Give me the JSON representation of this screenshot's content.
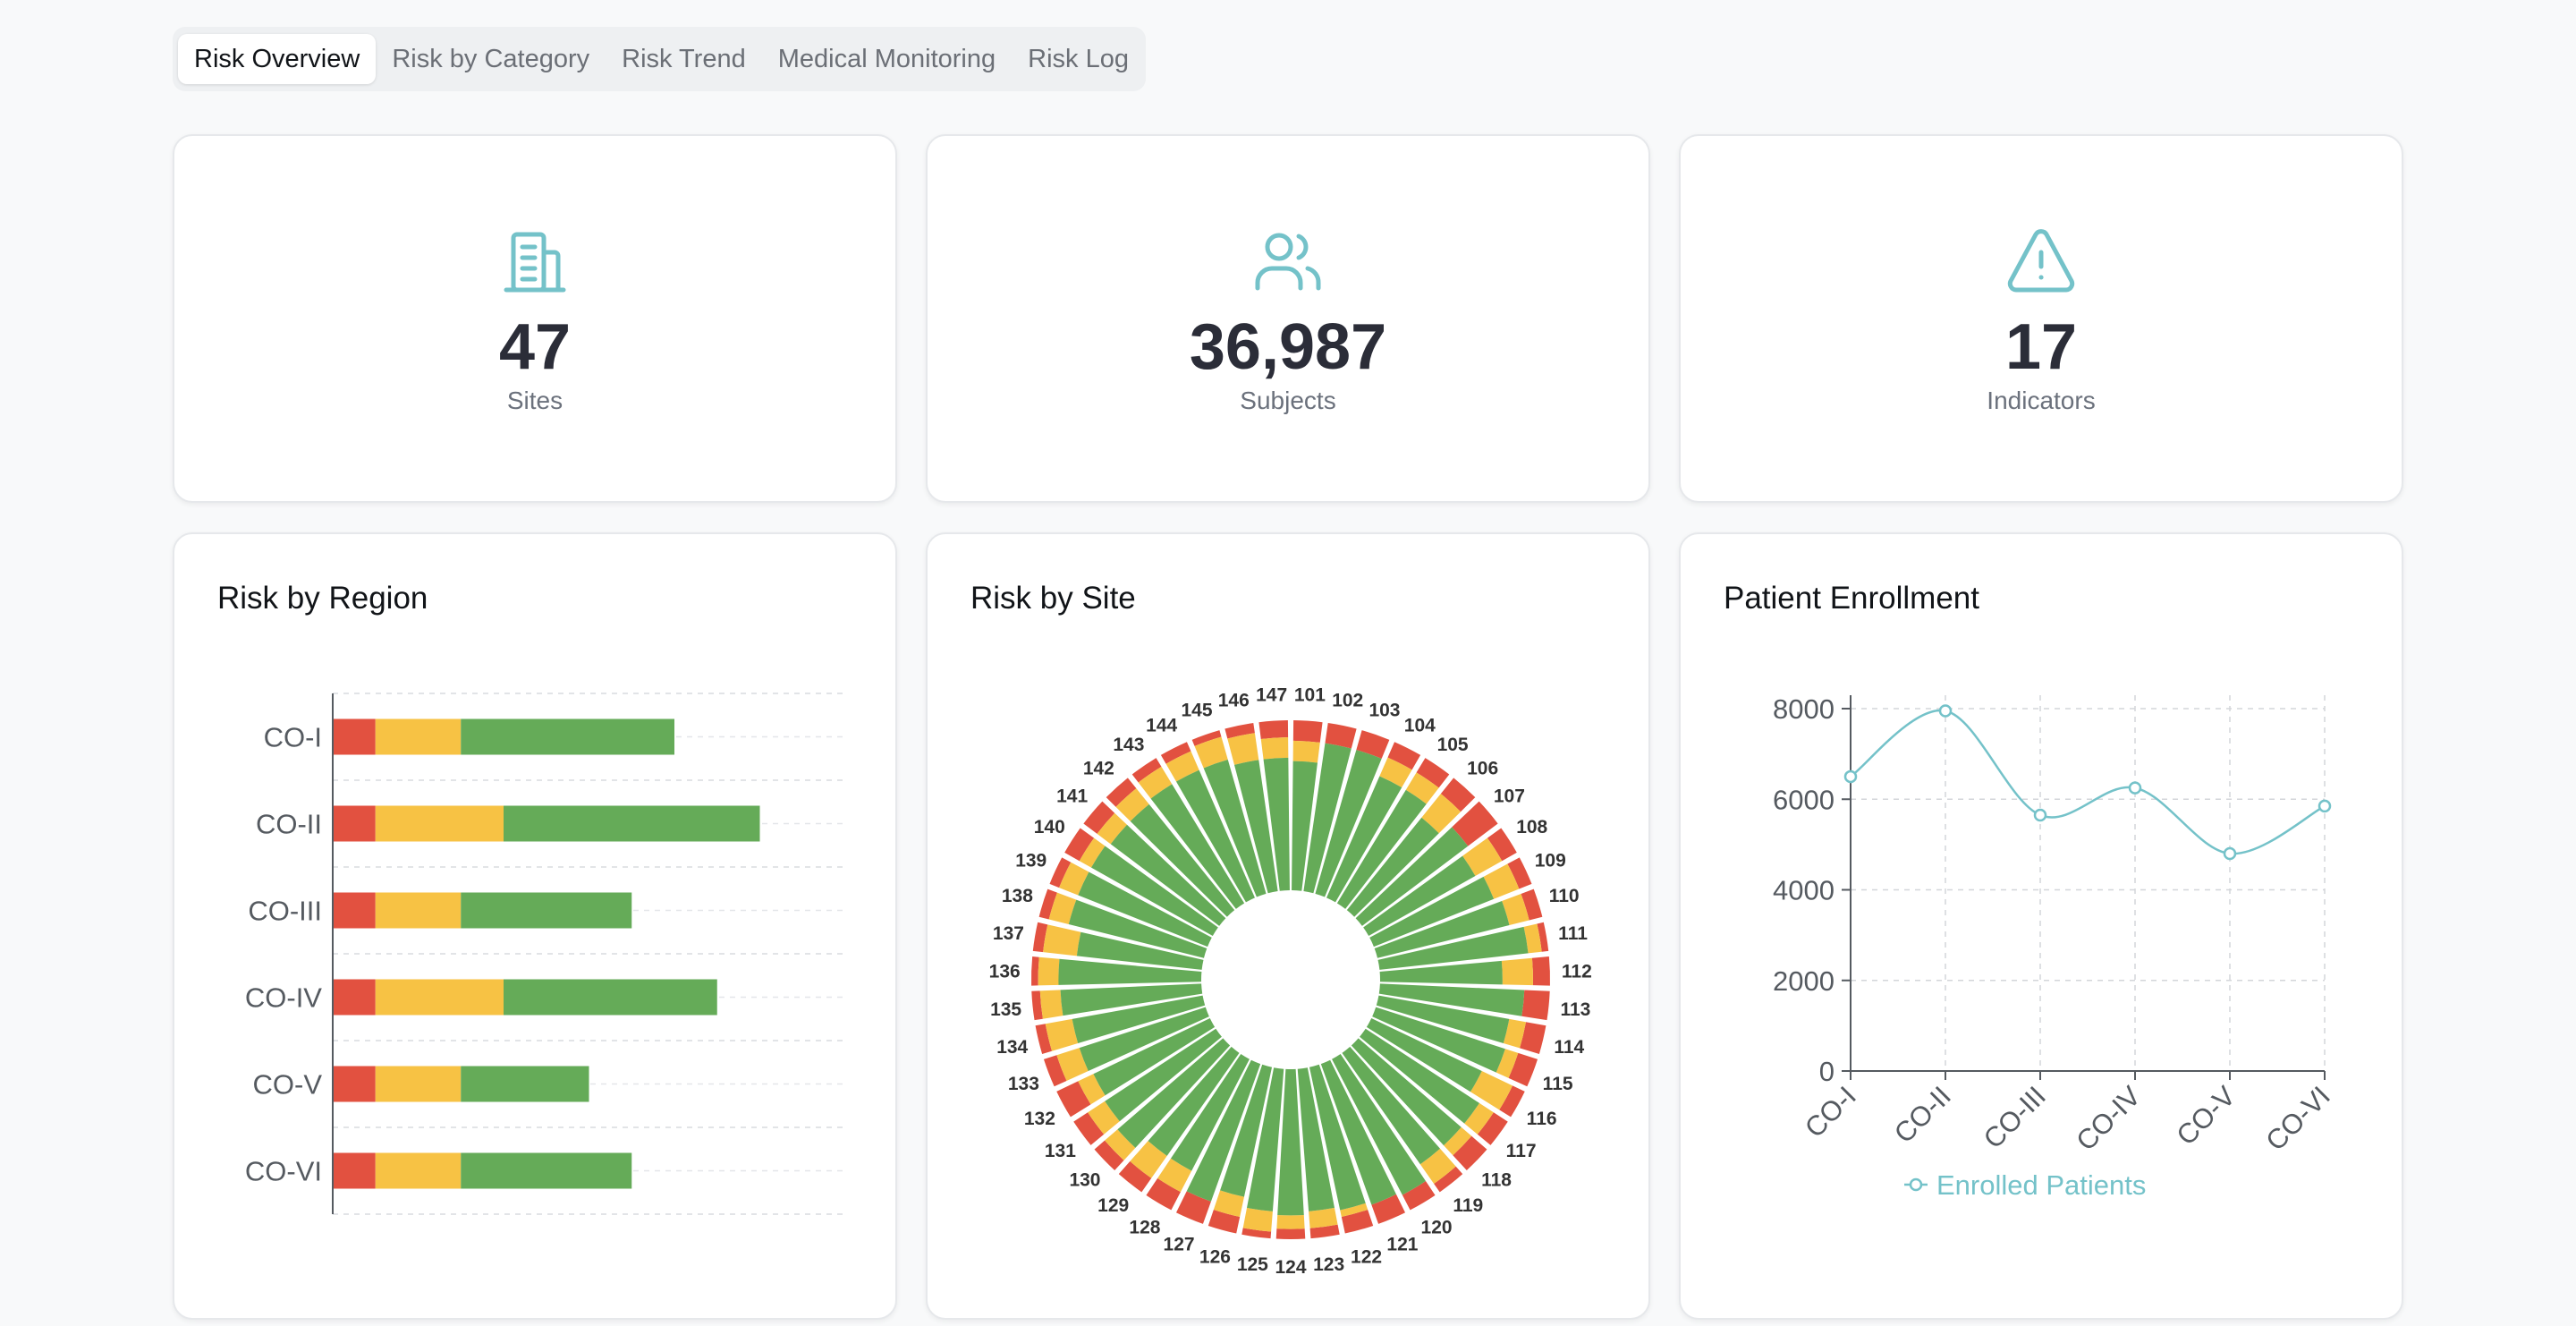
{
  "tabs": [
    {
      "label": "Risk Overview",
      "active": true
    },
    {
      "label": "Risk by Category",
      "active": false
    },
    {
      "label": "Risk Trend",
      "active": false
    },
    {
      "label": "Medical Monitoring",
      "active": false
    },
    {
      "label": "Risk Log",
      "active": false
    }
  ],
  "stats": {
    "sites": {
      "value": "47",
      "label": "Sites",
      "icon": "building-icon"
    },
    "subjects": {
      "value": "36,987",
      "label": "Subjects",
      "icon": "users-icon"
    },
    "indicators": {
      "value": "17",
      "label": "Indicators",
      "icon": "alert-triangle-icon"
    }
  },
  "colors": {
    "accent": "#74c2c9",
    "red": "#e25140",
    "yellow": "#f7c244",
    "green": "#65ab58"
  },
  "region_chart": {
    "title": "Risk by Region",
    "chart_data": {
      "type": "bar",
      "orientation": "horizontal",
      "stacked": true,
      "categories": [
        "CO-I",
        "CO-II",
        "CO-III",
        "CO-IV",
        "CO-V",
        "CO-VI"
      ],
      "series": [
        {
          "color": "#e25140",
          "values": [
            1,
            1,
            1,
            1,
            1,
            1
          ]
        },
        {
          "color": "#f7c244",
          "values": [
            2,
            3,
            2,
            3,
            2,
            2
          ]
        },
        {
          "color": "#65ab58",
          "values": [
            5,
            6,
            4,
            5,
            3,
            4
          ]
        }
      ],
      "xlim": [
        0,
        12
      ],
      "grid": true
    }
  },
  "site_chart": {
    "title": "Risk by Site",
    "chart_data": {
      "type": "bar",
      "polar": true,
      "stacked": true,
      "categories": [
        "101",
        "102",
        "103",
        "104",
        "105",
        "106",
        "107",
        "108",
        "109",
        "110",
        "111",
        "112",
        "113",
        "114",
        "115",
        "116",
        "117",
        "118",
        "119",
        "120",
        "121",
        "122",
        "123",
        "124",
        "125",
        "126",
        "127",
        "128",
        "129",
        "130",
        "131",
        "132",
        "133",
        "134",
        "135",
        "136",
        "137",
        "138",
        "139",
        "140",
        "141",
        "142",
        "143",
        "144",
        "145",
        "146",
        "147"
      ],
      "series": [
        {
          "color": "#e25140",
          "values": [
            0.12,
            0.12,
            0.12,
            0.1,
            0.1,
            0.12,
            0.22,
            0.1,
            0.08,
            0.08,
            0.04,
            0.1,
            0.15,
            0.12,
            0.12,
            0.08,
            0.1,
            0.12,
            0.06,
            0.1,
            0.12,
            0.1,
            0.06,
            0.06,
            0.04,
            0.1,
            0.14,
            0.12,
            0.1,
            0.08,
            0.1,
            0.14,
            0.08,
            0.06,
            0.05,
            0.04,
            0.06,
            0.06,
            0.06,
            0.1,
            0.1,
            0.08,
            0.06,
            0.06,
            0.04,
            0.06,
            0.1
          ]
        },
        {
          "color": "#f7c244",
          "values": [
            0.12,
            0.0,
            0.0,
            0.12,
            0.12,
            0.18,
            0.0,
            0.18,
            0.16,
            0.12,
            0.08,
            0.18,
            0.0,
            0.1,
            0.08,
            0.2,
            0.1,
            0.08,
            0.14,
            0.0,
            0.0,
            0.04,
            0.1,
            0.08,
            0.12,
            0.12,
            0.0,
            0.14,
            0.16,
            0.1,
            0.12,
            0.1,
            0.14,
            0.16,
            0.12,
            0.12,
            0.2,
            0.12,
            0.12,
            0.08,
            0.1,
            0.12,
            0.12,
            0.12,
            0.14,
            0.16,
            0.12
          ]
        },
        {
          "color": "#65ab58",
          "values": [
            0.76,
            0.88,
            0.88,
            0.78,
            0.78,
            0.7,
            0.78,
            0.72,
            0.76,
            0.8,
            0.88,
            0.72,
            0.85,
            0.78,
            0.8,
            0.72,
            0.8,
            0.8,
            0.8,
            0.9,
            0.88,
            0.86,
            0.84,
            0.86,
            0.84,
            0.78,
            0.86,
            0.74,
            0.74,
            0.82,
            0.78,
            0.76,
            0.78,
            0.78,
            0.83,
            0.84,
            0.74,
            0.82,
            0.82,
            0.82,
            0.8,
            0.8,
            0.82,
            0.82,
            0.82,
            0.78,
            0.78
          ]
        }
      ]
    }
  },
  "enrollment_chart": {
    "title": "Patient Enrollment",
    "chart_data": {
      "type": "line",
      "categories": [
        "CO-I",
        "CO-II",
        "CO-III",
        "CO-IV",
        "CO-V",
        "CO-VI"
      ],
      "series": [
        {
          "name": "Enrolled Patients",
          "values": [
            6500,
            7950,
            5650,
            6250,
            4800,
            5850
          ],
          "color": "#74c2c9"
        }
      ],
      "ylim": [
        0,
        8000
      ],
      "yticks": [
        "0",
        "2000",
        "4000",
        "6000",
        "8000"
      ],
      "grid": true,
      "legend": "bottom"
    }
  }
}
